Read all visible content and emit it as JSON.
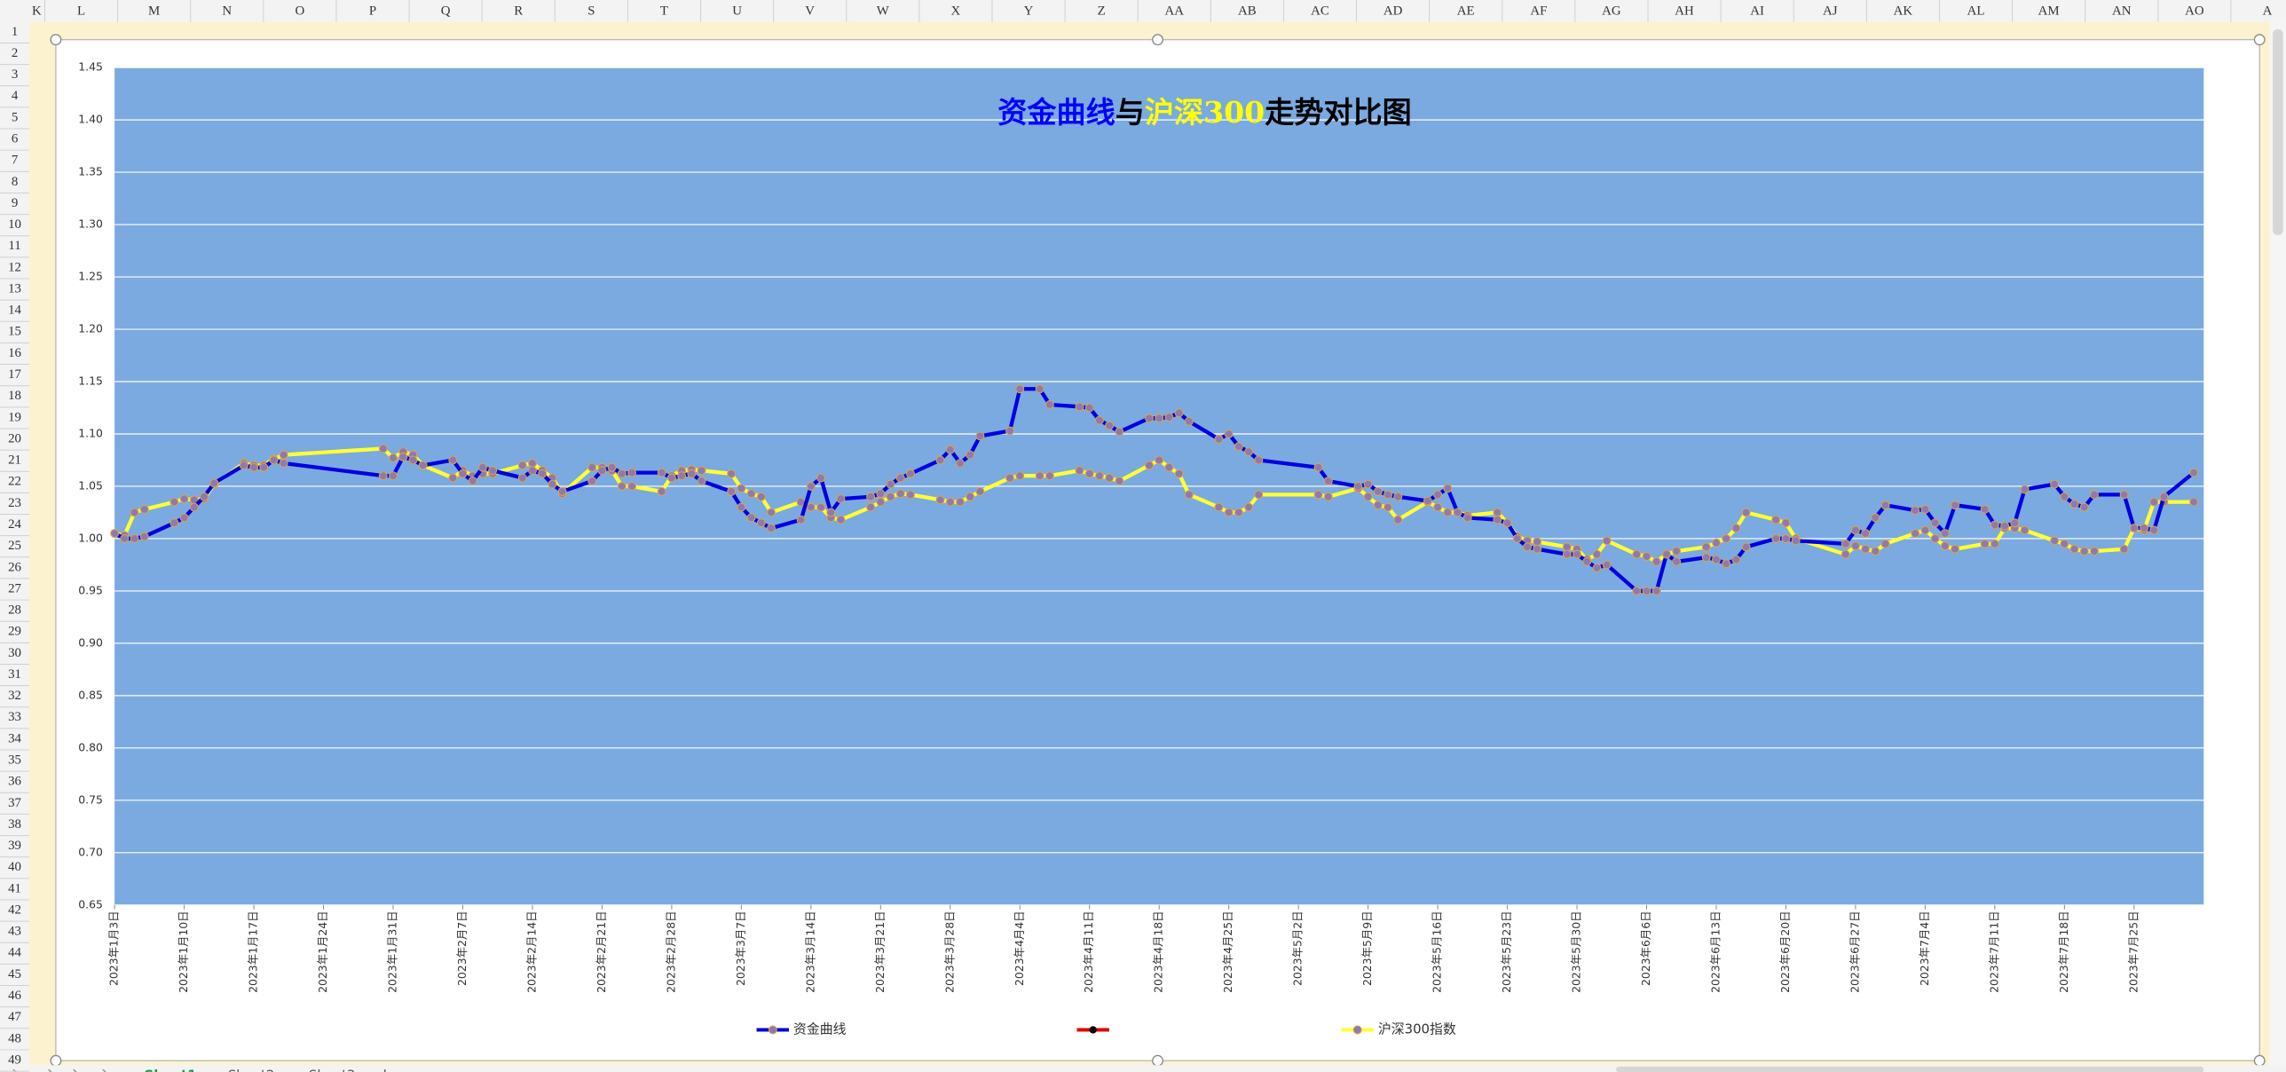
{
  "sheet": {
    "columns": [
      "K",
      "L",
      "M",
      "N",
      "O",
      "P",
      "Q",
      "R",
      "S",
      "T",
      "U",
      "V",
      "W",
      "X",
      "Y",
      "Z",
      "AA",
      "AB",
      "AC",
      "AD",
      "AE",
      "AF",
      "AG",
      "AH",
      "AI",
      "AJ",
      "AK",
      "AL",
      "AM",
      "AN",
      "AO",
      "A"
    ],
    "rows": [
      1,
      2,
      3,
      4,
      5,
      6,
      7,
      8,
      9,
      10,
      11,
      12,
      13,
      14,
      15,
      16,
      17,
      18,
      19,
      20,
      21,
      22,
      23,
      24,
      25,
      26,
      27,
      28,
      29,
      30,
      31,
      32,
      33,
      34,
      35,
      36,
      37,
      38,
      39,
      40,
      41,
      42,
      43,
      44,
      45,
      46,
      47,
      48,
      49
    ],
    "tabs": [
      "Sheet1",
      "Sheet2",
      "Sheet3"
    ]
  },
  "chart_data": {
    "type": "line",
    "title_parts": [
      {
        "text": "资金曲线",
        "color": "#0000ff"
      },
      {
        "text": "与",
        "color": "#000000"
      },
      {
        "text": "沪深300",
        "color": "#ffff00"
      },
      {
        "text": "走势对比图",
        "color": "#000000"
      }
    ],
    "background": "#7aaae0",
    "grid": true,
    "legend": "bottom",
    "marker_color": "#8c7bb0",
    "marker_edge": "#e8a33a",
    "x": [
      "2023-01-03",
      "2023-01-04",
      "2023-01-05",
      "2023-01-06",
      "2023-01-09",
      "2023-01-10",
      "2023-01-11",
      "2023-01-12",
      "2023-01-13",
      "2023-01-16",
      "2023-01-17",
      "2023-01-18",
      "2023-01-19",
      "2023-01-20",
      "2023-01-30",
      "2023-01-31",
      "2023-02-01",
      "2023-02-02",
      "2023-02-03",
      "2023-02-06",
      "2023-02-07",
      "2023-02-08",
      "2023-02-09",
      "2023-02-10",
      "2023-02-13",
      "2023-02-14",
      "2023-02-15",
      "2023-02-16",
      "2023-02-17",
      "2023-02-20",
      "2023-02-21",
      "2023-02-22",
      "2023-02-23",
      "2023-02-24",
      "2023-02-27",
      "2023-02-28",
      "2023-03-01",
      "2023-03-02",
      "2023-03-03",
      "2023-03-06",
      "2023-03-07",
      "2023-03-08",
      "2023-03-09",
      "2023-03-10",
      "2023-03-13",
      "2023-03-14",
      "2023-03-15",
      "2023-03-16",
      "2023-03-17",
      "2023-03-20",
      "2023-03-21",
      "2023-03-22",
      "2023-03-23",
      "2023-03-24",
      "2023-03-27",
      "2023-03-28",
      "2023-03-29",
      "2023-03-30",
      "2023-03-31",
      "2023-04-03",
      "2023-04-04",
      "2023-04-06",
      "2023-04-07",
      "2023-04-10",
      "2023-04-11",
      "2023-04-12",
      "2023-04-13",
      "2023-04-14",
      "2023-04-17",
      "2023-04-18",
      "2023-04-19",
      "2023-04-20",
      "2023-04-21",
      "2023-04-24",
      "2023-04-25",
      "2023-04-26",
      "2023-04-27",
      "2023-04-28",
      "2023-05-04",
      "2023-05-05",
      "2023-05-08",
      "2023-05-09",
      "2023-05-10",
      "2023-05-11",
      "2023-05-12",
      "2023-05-15",
      "2023-05-16",
      "2023-05-17",
      "2023-05-18",
      "2023-05-19",
      "2023-05-22",
      "2023-05-23",
      "2023-05-24",
      "2023-05-25",
      "2023-05-26",
      "2023-05-29",
      "2023-05-30",
      "2023-05-31",
      "2023-06-01",
      "2023-06-02",
      "2023-06-05",
      "2023-06-06",
      "2023-06-07",
      "2023-06-08",
      "2023-06-09",
      "2023-06-12",
      "2023-06-13",
      "2023-06-14",
      "2023-06-15",
      "2023-06-16",
      "2023-06-19",
      "2023-06-20",
      "2023-06-21",
      "2023-06-26",
      "2023-06-27",
      "2023-06-28",
      "2023-06-29",
      "2023-06-30",
      "2023-07-03",
      "2023-07-04",
      "2023-07-05",
      "2023-07-06",
      "2023-07-07",
      "2023-07-10",
      "2023-07-11",
      "2023-07-12",
      "2023-07-13",
      "2023-07-14",
      "2023-07-17",
      "2023-07-18",
      "2023-07-19",
      "2023-07-20",
      "2023-07-21",
      "2023-07-24",
      "2023-07-25",
      "2023-07-26",
      "2023-07-27",
      "2023-07-28",
      "2023-07-31"
    ],
    "series": [
      {
        "name": "沪深300指数",
        "color": "#ffff33",
        "values": [
          1.005,
          1.003,
          1.025,
          1.028,
          1.035,
          1.038,
          1.037,
          1.038,
          1.052,
          1.072,
          1.07,
          1.07,
          1.076,
          1.08,
          1.086,
          1.077,
          1.083,
          1.08,
          1.07,
          1.058,
          1.065,
          1.06,
          1.062,
          1.062,
          1.07,
          1.072,
          1.065,
          1.058,
          1.043,
          1.068,
          1.068,
          1.065,
          1.05,
          1.05,
          1.045,
          1.06,
          1.065,
          1.066,
          1.065,
          1.062,
          1.048,
          1.043,
          1.04,
          1.025,
          1.035,
          1.03,
          1.03,
          1.02,
          1.018,
          1.03,
          1.035,
          1.04,
          1.043,
          1.042,
          1.037,
          1.035,
          1.035,
          1.04,
          1.045,
          1.058,
          1.06,
          1.06,
          1.06,
          1.065,
          1.062,
          1.06,
          1.058,
          1.055,
          1.07,
          1.075,
          1.068,
          1.062,
          1.042,
          1.03,
          1.025,
          1.025,
          1.03,
          1.042,
          1.042,
          1.04,
          1.048,
          1.04,
          1.032,
          1.03,
          1.018,
          1.035,
          1.03,
          1.025,
          1.025,
          1.022,
          1.025,
          1.015,
          1.002,
          0.998,
          0.997,
          0.992,
          0.99,
          0.98,
          0.985,
          0.998,
          0.985,
          0.983,
          0.978,
          0.985,
          0.988,
          0.992,
          0.996,
          1.0,
          1.01,
          1.025,
          1.018,
          1.015,
          1.0,
          0.985,
          0.993,
          0.99,
          0.988,
          0.995,
          1.005,
          1.008,
          1.0,
          0.993,
          0.99,
          0.995,
          0.995,
          1.01,
          1.01,
          1.008,
          0.998,
          0.995,
          0.99,
          0.988,
          0.988,
          0.99,
          1.01,
          1.008,
          1.035,
          1.035,
          1.035
        ]
      },
      {
        "name": "资金曲线",
        "color": "#0000e0",
        "values": [
          1.005,
          1.0,
          1.0,
          1.002,
          1.015,
          1.02,
          1.03,
          1.04,
          1.053,
          1.07,
          1.068,
          1.068,
          1.075,
          1.072,
          1.06,
          1.06,
          1.078,
          1.075,
          1.07,
          1.075,
          1.062,
          1.055,
          1.068,
          1.065,
          1.058,
          1.065,
          1.062,
          1.052,
          1.045,
          1.055,
          1.065,
          1.068,
          1.062,
          1.063,
          1.063,
          1.058,
          1.06,
          1.062,
          1.055,
          1.045,
          1.03,
          1.02,
          1.015,
          1.01,
          1.018,
          1.05,
          1.058,
          1.025,
          1.038,
          1.04,
          1.043,
          1.052,
          1.058,
          1.062,
          1.075,
          1.085,
          1.072,
          1.08,
          1.098,
          1.103,
          1.143,
          1.143,
          1.128,
          1.126,
          1.125,
          1.113,
          1.108,
          1.102,
          1.115,
          1.115,
          1.116,
          1.12,
          1.112,
          1.095,
          1.1,
          1.088,
          1.083,
          1.075,
          1.068,
          1.055,
          1.05,
          1.052,
          1.045,
          1.042,
          1.04,
          1.036,
          1.042,
          1.048,
          1.025,
          1.02,
          1.018,
          1.015,
          1.0,
          0.992,
          0.99,
          0.985,
          0.985,
          0.978,
          0.972,
          0.975,
          0.95,
          0.95,
          0.95,
          0.985,
          0.978,
          0.982,
          0.98,
          0.976,
          0.98,
          0.992,
          1.0,
          1.0,
          0.998,
          0.995,
          1.008,
          1.005,
          1.02,
          1.032,
          1.027,
          1.028,
          1.015,
          1.005,
          1.032,
          1.028,
          1.013,
          1.012,
          1.015,
          1.047,
          1.052,
          1.04,
          1.033,
          1.03,
          1.042,
          1.042,
          1.01,
          1.01,
          1.008,
          1.04,
          1.063
        ]
      }
    ],
    "xlim": [
      "2023-01-03",
      "2023-08-01"
    ],
    "xticks": [
      {
        "value": "2023-01-03",
        "label": "2023年1月3日"
      },
      {
        "value": "2023-01-10",
        "label": "2023年1月10日"
      },
      {
        "value": "2023-01-17",
        "label": "2023年1月17日"
      },
      {
        "value": "2023-01-24",
        "label": "2023年1月24日"
      },
      {
        "value": "2023-01-31",
        "label": "2023年1月31日"
      },
      {
        "value": "2023-02-07",
        "label": "2023年2月7日"
      },
      {
        "value": "2023-02-14",
        "label": "2023年2月14日"
      },
      {
        "value": "2023-02-21",
        "label": "2023年2月21日"
      },
      {
        "value": "2023-02-28",
        "label": "2023年2月28日"
      },
      {
        "value": "2023-03-07",
        "label": "2023年3月7日"
      },
      {
        "value": "2023-03-14",
        "label": "2023年3月14日"
      },
      {
        "value": "2023-03-21",
        "label": "2023年3月21日"
      },
      {
        "value": "2023-03-28",
        "label": "2023年3月28日"
      },
      {
        "value": "2023-04-04",
        "label": "2023年4月4日"
      },
      {
        "value": "2023-04-11",
        "label": "2023年4月11日"
      },
      {
        "value": "2023-04-18",
        "label": "2023年4月18日"
      },
      {
        "value": "2023-04-25",
        "label": "2023年4月25日"
      },
      {
        "value": "2023-05-02",
        "label": "2023年5月2日"
      },
      {
        "value": "2023-05-09",
        "label": "2023年5月9日"
      },
      {
        "value": "2023-05-16",
        "label": "2023年5月16日"
      },
      {
        "value": "2023-05-23",
        "label": "2023年5月23日"
      },
      {
        "value": "2023-05-30",
        "label": "2023年5月30日"
      },
      {
        "value": "2023-06-06",
        "label": "2023年6月6日"
      },
      {
        "value": "2023-06-13",
        "label": "2023年6月13日"
      },
      {
        "value": "2023-06-20",
        "label": "2023年6月20日"
      },
      {
        "value": "2023-06-27",
        "label": "2023年6月27日"
      },
      {
        "value": "2023-07-04",
        "label": "2023年7月4日"
      },
      {
        "value": "2023-07-11",
        "label": "2023年7月11日"
      },
      {
        "value": "2023-07-18",
        "label": "2023年7月18日"
      },
      {
        "value": "2023-07-25",
        "label": "2023年7月25日"
      }
    ],
    "ylim": [
      0.65,
      1.45
    ],
    "yticks": [
      0.65,
      {
        "value": 0.7,
        "label": "0.70"
      },
      0.75,
      {
        "value": 0.8,
        "label": "0.80"
      },
      0.85,
      {
        "value": 0.9,
        "label": "0.90"
      },
      0.95,
      {
        "value": 1.0,
        "label": "1.00"
      },
      1.05,
      {
        "value": 1.1,
        "label": "1.10"
      },
      1.15,
      {
        "value": 1.2,
        "label": "1.20"
      },
      1.25,
      {
        "value": 1.3,
        "label": "1.30"
      },
      1.35,
      {
        "value": 1.4,
        "label": "1.40"
      },
      1.45
    ]
  }
}
